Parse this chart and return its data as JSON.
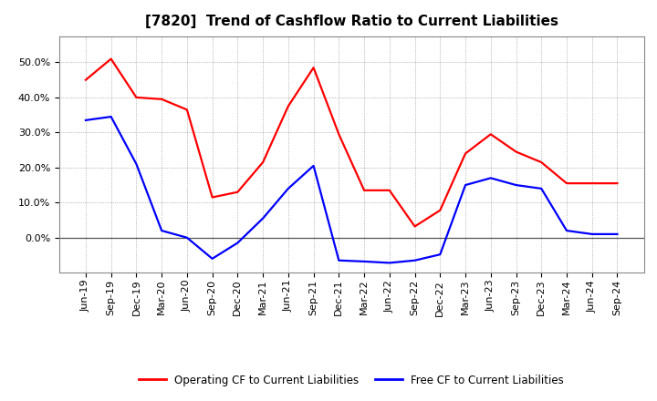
{
  "title": "[7820]  Trend of Cashflow Ratio to Current Liabilities",
  "labels": [
    "Jun-19",
    "Sep-19",
    "Dec-19",
    "Mar-20",
    "Jun-20",
    "Sep-20",
    "Dec-20",
    "Mar-21",
    "Jun-21",
    "Sep-21",
    "Dec-21",
    "Mar-22",
    "Jun-22",
    "Sep-22",
    "Dec-22",
    "Mar-23",
    "Jun-23",
    "Sep-23",
    "Dec-23",
    "Mar-24",
    "Jun-24",
    "Sep-24"
  ],
  "op_cf": [
    0.45,
    0.51,
    0.4,
    0.395,
    0.365,
    0.115,
    0.13,
    0.215,
    0.375,
    0.485,
    0.295,
    0.135,
    0.135,
    0.032,
    0.078,
    0.24,
    0.295,
    0.245,
    0.215,
    0.155,
    0.155,
    0.155
  ],
  "free_cf": [
    0.335,
    0.345,
    0.21,
    0.02,
    0.0,
    -0.06,
    -0.015,
    0.055,
    0.14,
    0.205,
    -0.065,
    -0.068,
    -0.072,
    -0.065,
    -0.048,
    0.15,
    0.17,
    0.15,
    0.14,
    0.02,
    0.01,
    0.01
  ],
  "operating_color": "#ff0000",
  "free_color": "#0000ff",
  "legend_operating": "Operating CF to Current Liabilities",
  "legend_free": "Free CF to Current Liabilities",
  "ylim_min": -0.1,
  "ylim_max": 0.575,
  "yticks": [
    0.0,
    0.1,
    0.2,
    0.3,
    0.4,
    0.5
  ],
  "background_color": "#ffffff",
  "grid_color": "#888888",
  "title_fontsize": 11,
  "tick_fontsize": 8
}
